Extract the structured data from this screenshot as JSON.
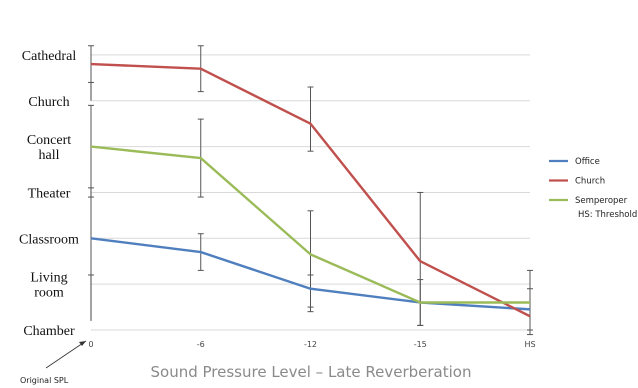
{
  "chart_data": {
    "type": "line",
    "xlabel": "Sound Pressure Level – Late Reverberation",
    "x_categories": [
      "0",
      "-6",
      "-12",
      "-15",
      "HS"
    ],
    "y_categories": [
      "Chamber",
      "Living room",
      "Classroom",
      "Theater",
      "Concert hall",
      "Church",
      "Cathedral"
    ],
    "y_category_lines": [
      [
        "Chamber"
      ],
      [
        "Living",
        "room"
      ],
      [
        "Classroom"
      ],
      [
        "Theater"
      ],
      [
        "Concert",
        "hall"
      ],
      [
        "Church"
      ],
      [
        "Cathedral"
      ]
    ],
    "ylim": [
      0,
      6.5
    ],
    "grid": true,
    "legend_position": "right",
    "series": [
      {
        "name": "Office",
        "color": "#4f7fbe",
        "values": [
          2.0,
          1.7,
          0.9,
          0.6,
          0.45
        ]
      },
      {
        "name": "Church",
        "color": "#c0504d",
        "values": [
          5.8,
          5.7,
          4.5,
          1.5,
          0.3
        ]
      },
      {
        "name": "Semperoper",
        "color": "#9bbb59",
        "values": [
          4.0,
          3.75,
          1.65,
          0.6,
          0.6
        ]
      }
    ],
    "error_bars": [
      {
        "x": "0",
        "low": 5.4,
        "high": 6.2
      },
      {
        "x": "0",
        "low": 3.1,
        "high": 4.9
      },
      {
        "x": "0",
        "low": 1.2,
        "high": 2.9
      },
      {
        "x": "-6",
        "low": 5.2,
        "high": 6.2
      },
      {
        "x": "-6",
        "low": 2.9,
        "high": 4.6
      },
      {
        "x": "-6",
        "low": 1.3,
        "high": 2.1
      },
      {
        "x": "-12",
        "low": 3.9,
        "high": 5.3
      },
      {
        "x": "-12",
        "low": 0.4,
        "high": 2.6
      },
      {
        "x": "-12",
        "low": 0.5,
        "high": 1.2
      },
      {
        "x": "-15",
        "low": 0.1,
        "high": 3.0
      },
      {
        "x": "-15",
        "low": 0.1,
        "high": 1.1
      },
      {
        "x": "HS",
        "low": -0.1,
        "high": 1.3
      },
      {
        "x": "HS",
        "low": 0.0,
        "high": 0.9
      }
    ],
    "legend_note": "HS: Threshold",
    "origin_annotation": "Original SPL"
  }
}
